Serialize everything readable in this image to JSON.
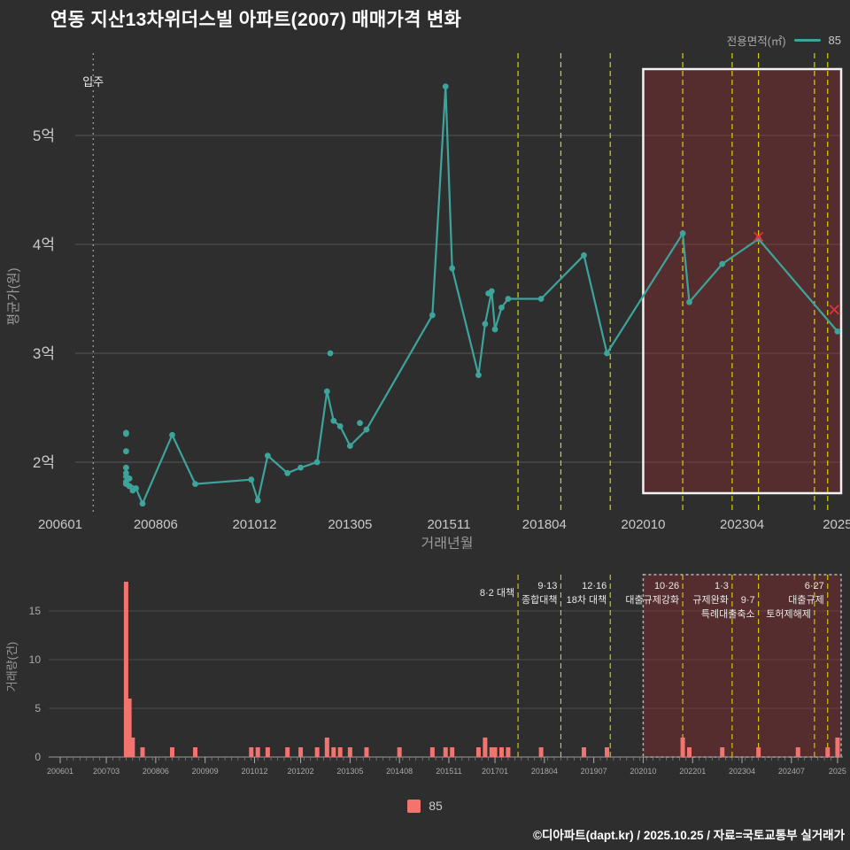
{
  "title": "연동 지산13차위더스빌 아파트(2007) 매매가격 변화",
  "legend_top": {
    "label": "전용면적(㎡)",
    "series": "85"
  },
  "legend_bottom": {
    "label": "85"
  },
  "footer": "©디아파트(dapt.kr) / 2025.10.25 / 자료=국토교통부 실거래가",
  "colors": {
    "background": "#2e2e2e",
    "line": "#3da49b",
    "bar": "#f3736f",
    "policy_line": "#d6d600",
    "cancel_x": "#e03535",
    "grid": "#555555",
    "highlight_fill": "rgba(150,45,48,0.38)",
    "highlight_border_top": "#f2f2f2",
    "highlight_border_bottom": "#b9b9b9",
    "text_muted": "#a9a9a9",
    "text_tick": "#c9c9c9"
  },
  "highlight": {
    "from": "202010",
    "to": "202510"
  },
  "policies": [
    {
      "date": "201708",
      "lines": [
        "8·2 대책"
      ],
      "dy": 8
    },
    {
      "date": "201809",
      "lines": [
        "9·13",
        "종합대책"
      ],
      "dy": 0
    },
    {
      "date": "201912",
      "lines": [
        "12·16",
        "18차 대책"
      ],
      "dy": 0
    },
    {
      "date": "202110",
      "lines": [
        "10·26",
        "대출규제강화"
      ],
      "dy": 0
    },
    {
      "date": "202301",
      "lines": [
        "1·3",
        "규제완화"
      ],
      "dy": 0
    },
    {
      "date": "202309",
      "lines": [
        "9·7",
        "특례대출축소"
      ],
      "dy": 16
    },
    {
      "date": "202502",
      "lines": [
        "토허제해제"
      ],
      "dy": 32
    },
    {
      "date": "202506",
      "lines": [
        "6·27",
        "대출규제"
      ],
      "dy": 0
    }
  ],
  "chart_data": [
    {
      "type": "line",
      "title": "매매가격 변화",
      "xlabel": "거래년월",
      "ylabel": "평균가(원)",
      "unit": "억원",
      "ylim": [
        1.5,
        5.6
      ],
      "yticks": [
        {
          "label": "2억",
          "value": 2
        },
        {
          "label": "3억",
          "value": 3
        },
        {
          "label": "4억",
          "value": 4
        },
        {
          "label": "5억",
          "value": 5
        }
      ],
      "xticks": [
        {
          "label": "200601",
          "date": "200601"
        },
        {
          "label": "200806",
          "date": "200806"
        },
        {
          "label": "201012",
          "date": "201012"
        },
        {
          "label": "201305",
          "date": "201305"
        },
        {
          "label": "201511",
          "date": "201511"
        },
        {
          "label": "201804",
          "date": "201804"
        },
        {
          "label": "202010",
          "date": "202010"
        },
        {
          "label": "202304",
          "date": "202304"
        },
        {
          "label": "2025",
          "date": "202509"
        }
      ],
      "move_in": {
        "label": "입주",
        "date": "200611"
      },
      "series": [
        {
          "name": "85",
          "color": "#3da49b",
          "points": [
            [
              "200709",
              1.82
            ],
            [
              "200712",
              1.76
            ],
            [
              "200802",
              1.62
            ],
            [
              "200811",
              2.25
            ],
            [
              "200906",
              1.8
            ],
            [
              "201011",
              1.84
            ],
            [
              "201101",
              1.65
            ],
            [
              "201104",
              2.06
            ],
            [
              "201110",
              1.9
            ],
            [
              "201202",
              1.95
            ],
            [
              "201207",
              2.0
            ],
            [
              "201210",
              2.65
            ],
            [
              "201212",
              2.38
            ],
            [
              "201302",
              2.33
            ],
            [
              "201305",
              2.15
            ],
            [
              "201310",
              2.3
            ],
            [
              "201506",
              3.35
            ],
            [
              "201510",
              5.45
            ],
            [
              "201512",
              3.78
            ],
            [
              "201608",
              2.8
            ],
            [
              "201610",
              3.27
            ],
            [
              "201612",
              3.57
            ],
            [
              "201701",
              3.22
            ],
            [
              "201703",
              3.42
            ],
            [
              "201705",
              3.5
            ],
            [
              "201803",
              3.5
            ],
            [
              "201904",
              3.9
            ],
            [
              "201911",
              3.0
            ],
            [
              "202110",
              4.1
            ],
            [
              "202112",
              3.47
            ],
            [
              "202210",
              3.82
            ],
            [
              "202309",
              4.05
            ],
            [
              "202509",
              3.2
            ]
          ]
        }
      ],
      "extra_points": [
        [
          "200709",
          2.27
        ],
        [
          "200709",
          2.26
        ],
        [
          "200709",
          2.1
        ],
        [
          "200709",
          1.95
        ],
        [
          "200709",
          1.9
        ],
        [
          "200709",
          1.87
        ],
        [
          "200709",
          1.8
        ],
        [
          "200710",
          1.85
        ],
        [
          "200710",
          1.78
        ],
        [
          "200711",
          1.74
        ],
        [
          "201211",
          3.0
        ],
        [
          "201308",
          2.36
        ],
        [
          "201611",
          3.55
        ]
      ],
      "cancelled": [
        [
          "202309",
          4.07
        ],
        [
          "202508",
          3.4
        ]
      ]
    },
    {
      "type": "bar",
      "xlabel": "",
      "ylabel": "거래량(건)",
      "unit": "건",
      "ylim": [
        0,
        18
      ],
      "yticks": [
        0,
        5,
        10,
        15
      ],
      "xticks": [
        {
          "label": "200601",
          "date": "200601"
        },
        {
          "label": "200703",
          "date": "200703"
        },
        {
          "label": "200806",
          "date": "200806"
        },
        {
          "label": "200909",
          "date": "200909"
        },
        {
          "label": "201012",
          "date": "201012"
        },
        {
          "label": "201202",
          "date": "201202"
        },
        {
          "label": "201305",
          "date": "201305"
        },
        {
          "label": "201408",
          "date": "201408"
        },
        {
          "label": "201511",
          "date": "201511"
        },
        {
          "label": "201701",
          "date": "201701"
        },
        {
          "label": "201804",
          "date": "201804"
        },
        {
          "label": "201907",
          "date": "201907"
        },
        {
          "label": "202010",
          "date": "202010"
        },
        {
          "label": "202201",
          "date": "202201"
        },
        {
          "label": "202304",
          "date": "202304"
        },
        {
          "label": "202407",
          "date": "202407"
        },
        {
          "label": "2025",
          "date": "202509"
        }
      ],
      "series": [
        {
          "name": "85",
          "color": "#f3736f",
          "points": [
            [
              "200709",
              18
            ],
            [
              "200710",
              6
            ],
            [
              "200711",
              2
            ],
            [
              "200802",
              1
            ],
            [
              "200811",
              1
            ],
            [
              "200906",
              1
            ],
            [
              "201011",
              1
            ],
            [
              "201101",
              1
            ],
            [
              "201104",
              1
            ],
            [
              "201110",
              1
            ],
            [
              "201202",
              1
            ],
            [
              "201207",
              1
            ],
            [
              "201210",
              2
            ],
            [
              "201212",
              1
            ],
            [
              "201302",
              1
            ],
            [
              "201305",
              1
            ],
            [
              "201310",
              1
            ],
            [
              "201408",
              1
            ],
            [
              "201506",
              1
            ],
            [
              "201510",
              1
            ],
            [
              "201512",
              1
            ],
            [
              "201608",
              1
            ],
            [
              "201610",
              2
            ],
            [
              "201612",
              1
            ],
            [
              "201701",
              1
            ],
            [
              "201703",
              1
            ],
            [
              "201705",
              1
            ],
            [
              "201803",
              1
            ],
            [
              "201904",
              1
            ],
            [
              "201911",
              1
            ],
            [
              "202110",
              2
            ],
            [
              "202112",
              1
            ],
            [
              "202210",
              1
            ],
            [
              "202309",
              1
            ],
            [
              "202409",
              1
            ],
            [
              "202506",
              1
            ],
            [
              "202509",
              2
            ]
          ]
        }
      ]
    }
  ]
}
